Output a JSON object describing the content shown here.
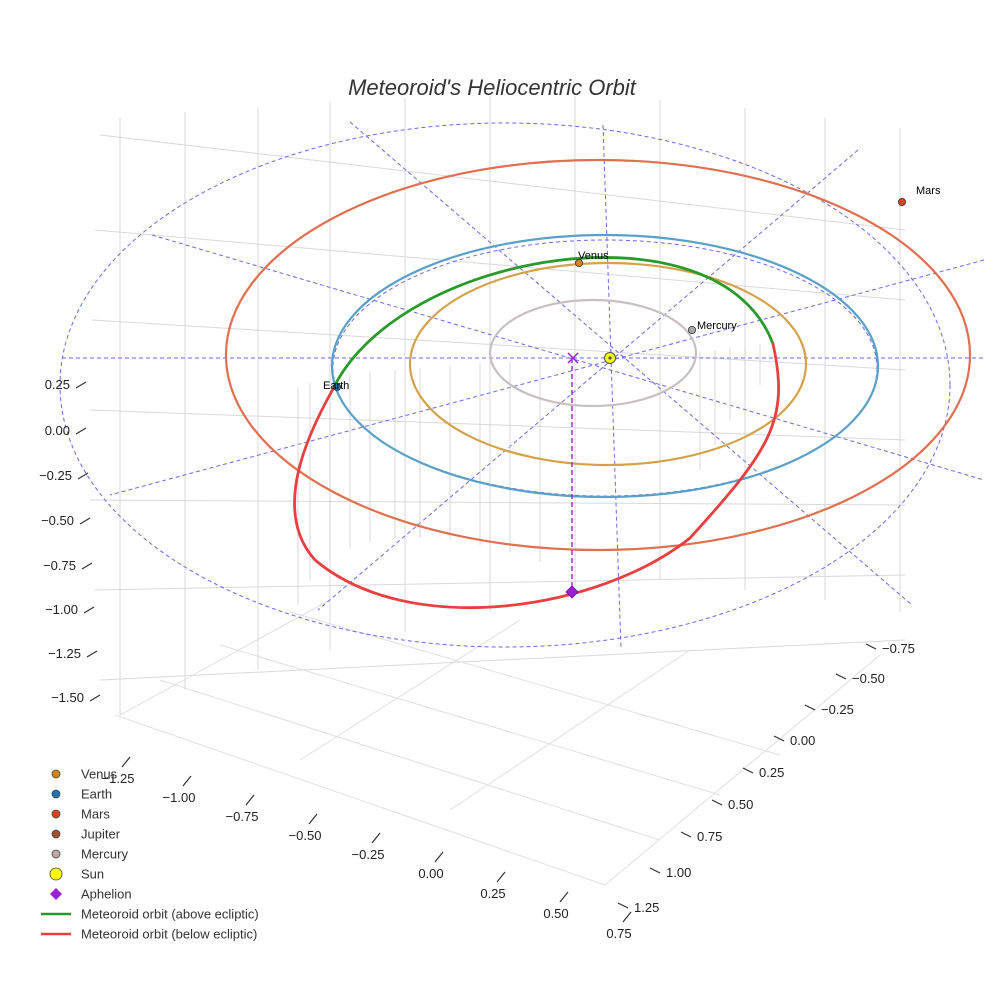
{
  "chart_data": {
    "type": "scatter3d",
    "title": "Meteoroid's Heliocentric Orbit",
    "axes": {
      "x": {
        "ticks": [
          "−1.25",
          "−1.00",
          "−0.75",
          "−0.50",
          "−0.25",
          "0.00",
          "0.25",
          "0.50",
          "0.75"
        ]
      },
      "y": {
        "ticks": [
          "−0.75",
          "−0.50",
          "−0.25",
          "0.00",
          "0.25",
          "0.50",
          "0.75",
          "1.00",
          "1.25"
        ]
      },
      "z": {
        "ticks": [
          "0.25",
          "0.00",
          "−0.25",
          "−0.50",
          "−0.75",
          "−1.00",
          "−1.25",
          "−1.50"
        ]
      }
    },
    "planet_orbits": [
      {
        "name": "Mercury",
        "semi_major_axis_au": 0.387,
        "color": "#c8c0c0"
      },
      {
        "name": "Venus",
        "semi_major_axis_au": 0.723,
        "color": "#d4a24a"
      },
      {
        "name": "Earth",
        "semi_major_axis_au": 1.0,
        "color": "#5aa0c8"
      },
      {
        "name": "Mars",
        "semi_major_axis_au": 1.524,
        "color": "#e07050"
      }
    ],
    "planet_markers": [
      {
        "name": "Venus",
        "label": "Venus",
        "color": "#d4841c"
      },
      {
        "name": "Earth",
        "label": "Earth",
        "color": "#1f77b4"
      },
      {
        "name": "Mars",
        "label": "Mars",
        "color": "#d9441e"
      },
      {
        "name": "Mercury",
        "label": "Mercury",
        "color": "#a8a8a8"
      }
    ],
    "meteoroid_orbit": {
      "above_ecliptic_color": "#2a9a2a",
      "below_ecliptic_color": "#e84040"
    },
    "sun": {
      "color": "#ffff00"
    },
    "aphelion": {
      "color": "#9b1fd4"
    },
    "ecliptic_grid_color": "#6a6ae8",
    "legend": [
      {
        "label": "Venus",
        "marker": "circle",
        "color": "#d4841c"
      },
      {
        "label": "Earth",
        "marker": "circle",
        "color": "#1f77b4"
      },
      {
        "label": "Mars",
        "marker": "circle",
        "color": "#d9441e"
      },
      {
        "label": "Jupiter",
        "marker": "circle",
        "color": "#a0522d"
      },
      {
        "label": "Mercury",
        "marker": "circle",
        "color": "#c0a8a8"
      },
      {
        "label": "Sun",
        "marker": "big-circle",
        "color": "#ffff00"
      },
      {
        "label": "Aphelion",
        "marker": "diamond",
        "color": "#9b1fd4"
      },
      {
        "label": "Meteoroid orbit (above ecliptic)",
        "marker": "line",
        "color": "#2a9a2a"
      },
      {
        "label": "Meteoroid orbit (below ecliptic)",
        "marker": "line",
        "color": "#e84040"
      }
    ]
  }
}
